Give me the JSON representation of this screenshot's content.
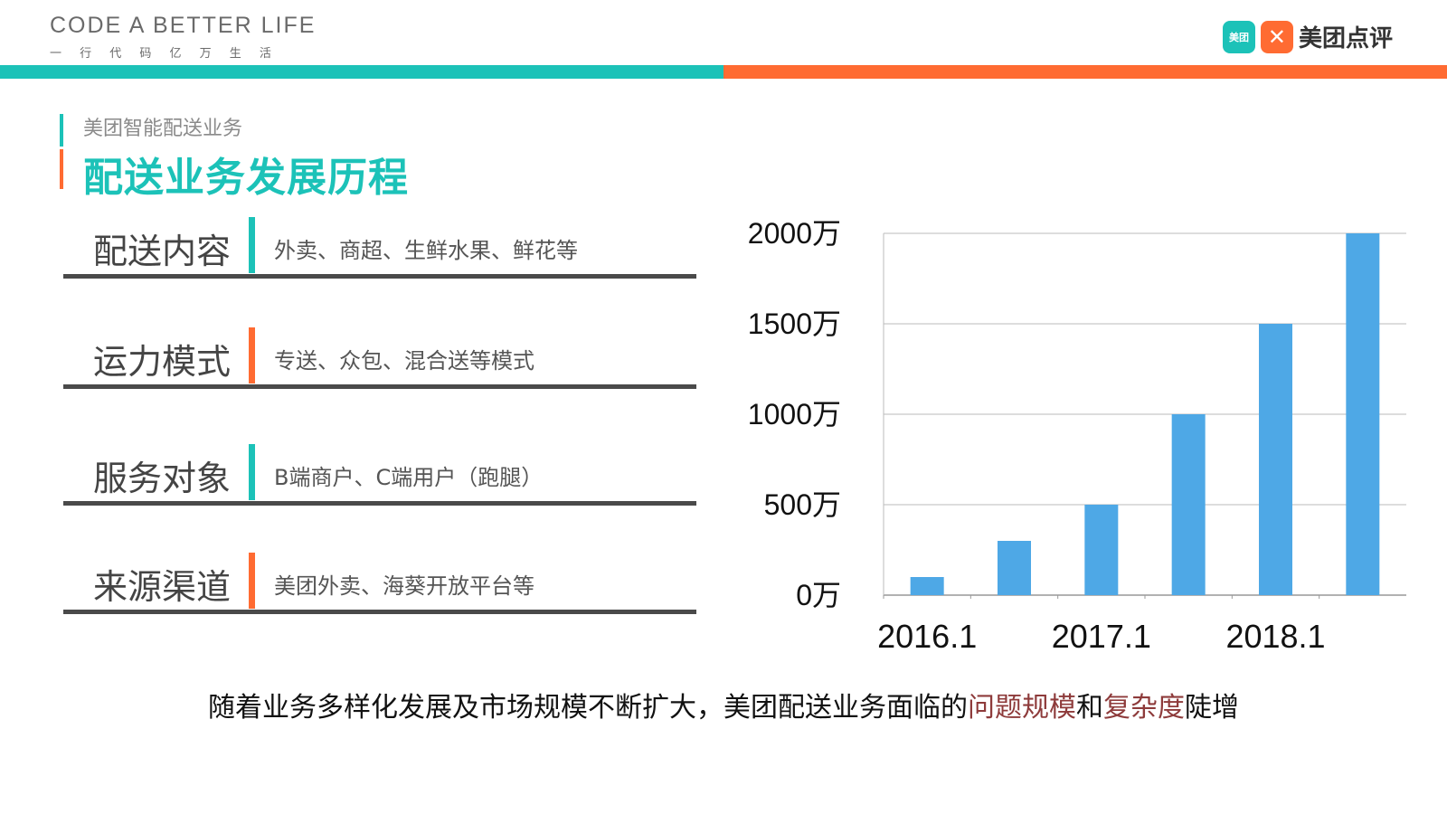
{
  "header": {
    "brand_main": "CODE A BETTER LIFE",
    "brand_sub": "一 行 代 码   亿 万 生 活",
    "logo_badge1": "美团",
    "logo_badge2": "✕",
    "logo_text": "美团点评"
  },
  "colors": {
    "teal": "#1cc2b8",
    "orange": "#ff6b32",
    "bar_blue": "#4ea8e6",
    "highlight": "#8e3b3b"
  },
  "subtitle": "美团智能配送业务",
  "title": "配送业务发展历程",
  "rows": [
    {
      "label": "配送内容",
      "text": "外卖、商超、生鲜水果、鲜花等",
      "accent": "#1cc2b8"
    },
    {
      "label": "运力模式",
      "text": "专送、众包、混合送等模式",
      "accent": "#ff6b32"
    },
    {
      "label": "服务对象",
      "text": "B端商户、C端用户（跑腿）",
      "accent": "#1cc2b8"
    },
    {
      "label": "来源渠道",
      "text": "美团外卖、海葵开放平台等",
      "accent": "#ff6b32"
    }
  ],
  "chart_data": {
    "type": "bar",
    "categories": [
      "2016.1",
      "",
      "2017.1",
      "",
      "2018.1",
      ""
    ],
    "values": [
      100,
      300,
      500,
      1000,
      1500,
      2000
    ],
    "y_ticks": [
      "0万",
      "500万",
      "1000万",
      "1500万",
      "2000万"
    ],
    "ylim": [
      0,
      2000
    ],
    "grid": true,
    "title": "",
    "xlabel": "",
    "ylabel": ""
  },
  "footer": {
    "part1": "随着业务多样化发展及市场规模不断扩大，美团配送业务面临的",
    "hl1": "问题规模",
    "part2": "和",
    "hl2": "复杂度",
    "part3": "陡增"
  }
}
